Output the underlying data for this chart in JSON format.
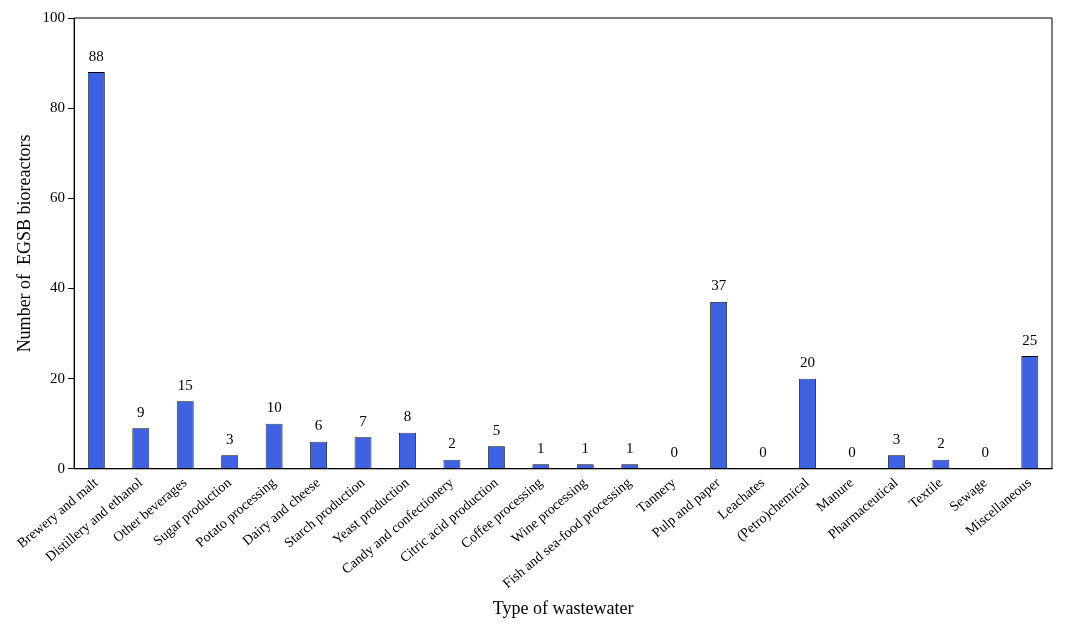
{
  "chart_data": {
    "type": "bar",
    "xlabel": "Type of wastewater",
    "ylabel": "Number of  EGSB bioreactors",
    "categories": [
      "Brewery and malt",
      "Distillery and ethanol",
      "Other beverages",
      "Sugar production",
      "Potato processing",
      "Dairy and cheese",
      "Starch production",
      "Yeast production",
      "Candy and confectionery",
      "Citric acid production",
      "Coffee processing",
      "Wine processing",
      "Fish and sea-food processing",
      "Tannery",
      "Pulp and paper",
      "Leachates",
      "(Petro)chemical",
      "Manure",
      "Pharmaceutical",
      "Textile",
      "Sewage",
      "Miscellaneous"
    ],
    "values": [
      88,
      9,
      15,
      3,
      10,
      6,
      7,
      8,
      2,
      5,
      1,
      1,
      1,
      0,
      37,
      0,
      20,
      0,
      3,
      2,
      0,
      25
    ],
    "color": "#3f63e0",
    "ylim": [
      0,
      100
    ],
    "yticks": [
      0,
      20,
      40,
      60,
      80,
      100
    ],
    "grid": false,
    "legend": false,
    "data_labels": true
  }
}
